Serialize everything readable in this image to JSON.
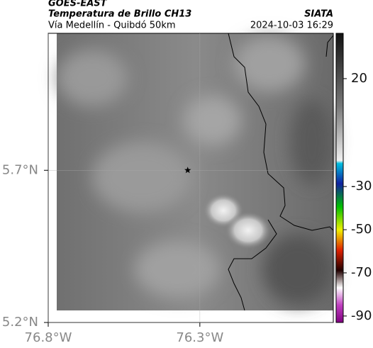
{
  "header": {
    "source": "GOES-EAST",
    "product": "Temperatura de Brillo CH13",
    "region": "Vía Medellín - Quibdó 50km",
    "agency": "SIATA",
    "timestamp": "2024-10-03 16:29"
  },
  "map": {
    "lon_range": [
      -76.8,
      -75.86
    ],
    "lat_range": [
      5.2,
      6.15
    ],
    "lon_ticks": [
      {
        "value": -76.8,
        "label": "76.8°W"
      },
      {
        "value": -76.3,
        "label": "76.3°W"
      }
    ],
    "lat_ticks": [
      {
        "value": 5.7,
        "label": "5.7°N"
      },
      {
        "value": 5.2,
        "label": "5.2°N"
      }
    ],
    "station": {
      "lon": -76.34,
      "lat": 5.7
    }
  },
  "colorbar": {
    "range": [
      -93,
      41
    ],
    "ticks": [
      20,
      -30,
      -50,
      -70,
      -90
    ]
  }
}
